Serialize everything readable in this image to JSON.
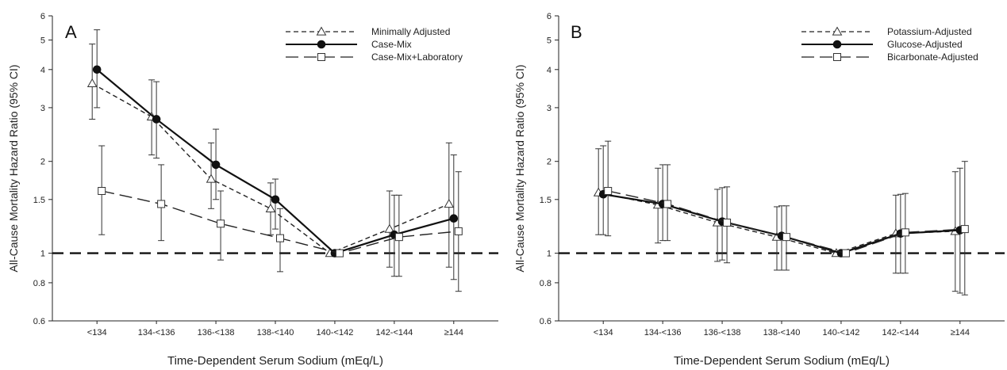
{
  "chart_data": [
    {
      "type": "line",
      "panel": "A",
      "xlabel": "Time-Dependent Serum Sodium (mEq/L)",
      "ylabel": "All-Cause Mortality Hazard Ratio (95% CI)",
      "yscale": "log",
      "ylim": [
        0.6,
        6
      ],
      "yticks": [
        "0.6",
        "0.8",
        "1",
        "1.5",
        "2",
        "3",
        "4",
        "5",
        "6"
      ],
      "categories": [
        "<134",
        "134-<136",
        "136-<138",
        "138-<140",
        "140-<142",
        "142-<144",
        "≥144"
      ],
      "reference_line": 1,
      "legend_position": "top-right",
      "series": [
        {
          "name": "Minimally Adjusted",
          "marker": "triangle",
          "line": "short-dash",
          "color": "#222222",
          "values": [
            3.6,
            2.8,
            1.75,
            1.4,
            1.0,
            1.2,
            1.45
          ],
          "lower": [
            2.75,
            2.1,
            1.4,
            1.15,
            1.0,
            0.9,
            0.9
          ],
          "upper": [
            4.85,
            3.7,
            2.3,
            1.7,
            1.0,
            1.6,
            2.3
          ]
        },
        {
          "name": "Case-Mix",
          "marker": "circle",
          "line": "solid",
          "color": "#111111",
          "values": [
            4.0,
            2.75,
            1.95,
            1.5,
            1.0,
            1.15,
            1.3
          ],
          "lower": [
            3.0,
            2.05,
            1.5,
            1.2,
            1.0,
            0.84,
            0.82
          ],
          "upper": [
            5.4,
            3.65,
            2.55,
            1.75,
            1.0,
            1.55,
            2.1
          ]
        },
        {
          "name": "Case-Mix+Laboratory",
          "marker": "square",
          "line": "long-dash",
          "color": "#222222",
          "values": [
            1.6,
            1.45,
            1.25,
            1.12,
            1.0,
            1.13,
            1.18
          ],
          "lower": [
            1.15,
            1.1,
            0.95,
            0.87,
            1.0,
            0.84,
            0.75
          ],
          "upper": [
            2.25,
            1.95,
            1.6,
            1.4,
            1.0,
            1.55,
            1.85
          ]
        }
      ]
    },
    {
      "type": "line",
      "panel": "B",
      "xlabel": "Time-Dependent Serum Sodium (mEq/L)",
      "ylabel": "All-Cause Mortality Hazard Ratio (95% CI)",
      "yscale": "log",
      "ylim": [
        0.6,
        6
      ],
      "yticks": [
        "0.6",
        "0.8",
        "1",
        "1.5",
        "2",
        "3",
        "4",
        "5",
        "6"
      ],
      "categories": [
        "<134",
        "134-<136",
        "136-<138",
        "138-<140",
        "140-<142",
        "142-<144",
        "≥144"
      ],
      "reference_line": 1,
      "legend_position": "top-right",
      "series": [
        {
          "name": "Potassium-Adjusted",
          "marker": "triangle",
          "line": "short-dash",
          "color": "#222222",
          "values": [
            1.58,
            1.44,
            1.26,
            1.13,
            1.0,
            1.16,
            1.18
          ],
          "lower": [
            1.15,
            1.08,
            0.94,
            0.88,
            1.0,
            0.86,
            0.75
          ],
          "upper": [
            2.2,
            1.9,
            1.62,
            1.42,
            1.0,
            1.55,
            1.85
          ]
        },
        {
          "name": "Glucose-Adjusted",
          "marker": "circle",
          "line": "solid",
          "color": "#111111",
          "values": [
            1.56,
            1.45,
            1.27,
            1.14,
            1.0,
            1.16,
            1.19
          ],
          "lower": [
            1.15,
            1.1,
            0.95,
            0.88,
            1.0,
            0.86,
            0.74
          ],
          "upper": [
            2.25,
            1.95,
            1.64,
            1.43,
            1.0,
            1.56,
            1.9
          ]
        },
        {
          "name": "Bicarbonate-Adjusted",
          "marker": "square",
          "line": "long-dash",
          "color": "#222222",
          "values": [
            1.6,
            1.45,
            1.26,
            1.13,
            1.0,
            1.17,
            1.2
          ],
          "lower": [
            1.14,
            1.1,
            0.93,
            0.88,
            1.0,
            0.86,
            0.73
          ],
          "upper": [
            2.33,
            1.95,
            1.65,
            1.43,
            1.0,
            1.57,
            2.0
          ]
        }
      ]
    }
  ]
}
